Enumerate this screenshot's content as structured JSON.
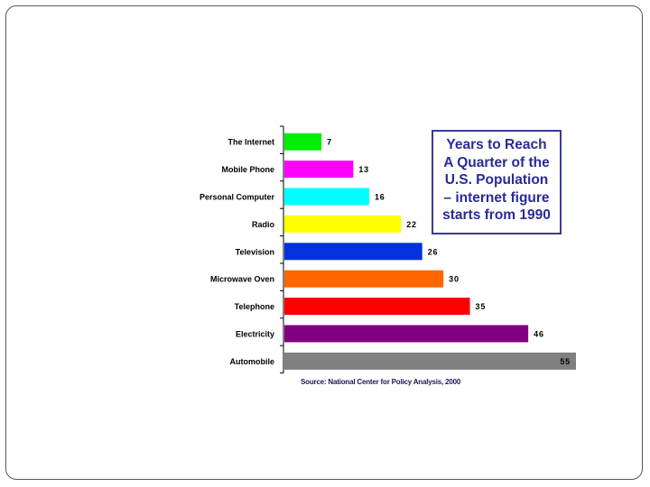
{
  "chart_data": {
    "type": "bar",
    "orientation": "horizontal",
    "categories": [
      "The Internet",
      "Mobile Phone",
      "Personal Computer",
      "Radio",
      "Television",
      "Microwave Oven",
      "Telephone",
      "Electricity",
      "Automobile"
    ],
    "values": [
      7,
      13,
      16,
      22,
      26,
      30,
      35,
      46,
      55
    ],
    "value_labels": [
      "7",
      "13",
      "16",
      "22",
      "26",
      "30",
      "35",
      "46",
      "55"
    ],
    "colors": [
      "#00ee00",
      "#ff00ff",
      "#00ffff",
      "#ffff00",
      "#0033dd",
      "#ff6600",
      "#ff0000",
      "#800080",
      "#808080"
    ],
    "xlim": [
      0,
      55
    ],
    "grid": false,
    "legend": "none"
  },
  "callout": {
    "lines": [
      "Years to Reach",
      "A Quarter of the",
      "U.S. Population",
      "– internet figure",
      "starts from 1990"
    ]
  },
  "source": "Source: National Center for Policy Analysis, 2000"
}
